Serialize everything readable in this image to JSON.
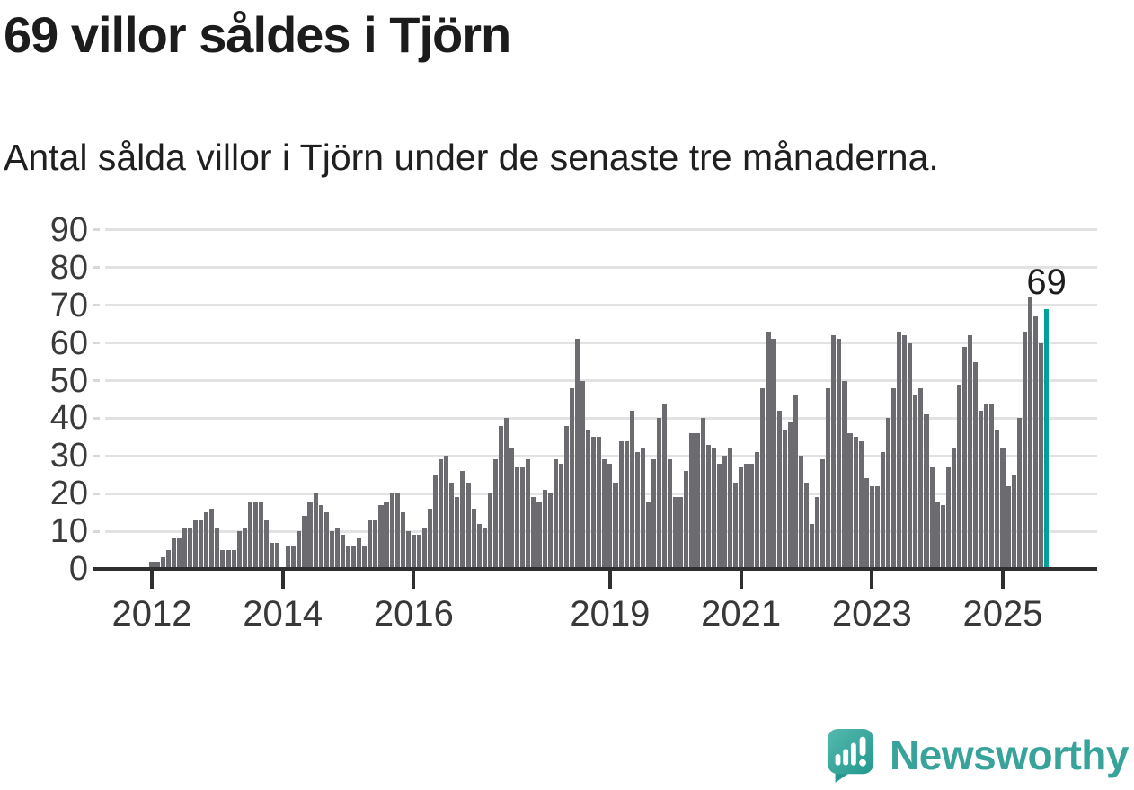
{
  "header": {
    "title": "69 villor såldes i Tjörn",
    "subtitle": "Antal sålda villor i Tjörn under de senaste tre månaderna."
  },
  "footer": {
    "brand": "Newsworthy"
  },
  "colors": {
    "bar": "#6b6b70",
    "highlight": "#00a09a",
    "grid": "#e2e2e2",
    "tick_dash": "#d8d8d8",
    "axis": "#2f2f2f",
    "axis_label": "#3a3a3a",
    "title_text": "#1c1c1c",
    "brand_teal": "#38a39a"
  },
  "chart_data": {
    "type": "bar",
    "title": "69 villor såldes i Tjörn",
    "subtitle": "Antal sålda villor i Tjörn under de senaste tre månaderna.",
    "ylabel": "",
    "xlabel": "",
    "ylim": [
      0,
      90
    ],
    "grid": "horizontal",
    "y_ticks": [
      0,
      10,
      20,
      30,
      40,
      50,
      60,
      70,
      80,
      90
    ],
    "x_year_ticks": [
      {
        "label": "2012",
        "index": 0
      },
      {
        "label": "2014",
        "index": 24
      },
      {
        "label": "2016",
        "index": 48
      },
      {
        "label": "2019",
        "index": 84
      },
      {
        "label": "2021",
        "index": 108
      },
      {
        "label": "2023",
        "index": 132
      },
      {
        "label": "2025",
        "index": 156
      }
    ],
    "values": [
      2,
      2,
      3,
      5,
      8,
      8,
      11,
      11,
      13,
      13,
      15,
      16,
      11,
      5,
      5,
      5,
      10,
      11,
      18,
      18,
      18,
      13,
      7,
      7,
      0,
      6,
      6,
      10,
      14,
      18,
      20,
      17,
      15,
      10,
      11,
      9,
      6,
      6,
      8,
      6,
      13,
      13,
      17,
      18,
      20,
      20,
      15,
      10,
      9,
      9,
      11,
      16,
      25,
      29,
      30,
      23,
      19,
      26,
      23,
      16,
      12,
      11,
      20,
      29,
      38,
      40,
      32,
      27,
      27,
      29,
      19,
      18,
      21,
      20,
      29,
      28,
      38,
      48,
      61,
      50,
      37,
      35,
      35,
      29,
      28,
      23,
      34,
      34,
      42,
      31,
      32,
      18,
      29,
      40,
      44,
      29,
      19,
      19,
      26,
      36,
      36,
      40,
      33,
      32,
      28,
      30,
      32,
      23,
      27,
      28,
      28,
      31,
      48,
      63,
      61,
      42,
      37,
      39,
      46,
      30,
      23,
      12,
      19,
      29,
      48,
      62,
      61,
      50,
      36,
      35,
      34,
      24,
      22,
      22,
      31,
      40,
      48,
      63,
      62,
      60,
      46,
      48,
      41,
      27,
      18,
      17,
      27,
      32,
      49,
      59,
      62,
      55,
      42,
      44,
      44,
      37,
      32,
      22,
      25,
      40,
      63,
      72,
      67,
      60,
      69
    ],
    "highlight": {
      "position": "last",
      "value": 69,
      "label": "69"
    }
  }
}
